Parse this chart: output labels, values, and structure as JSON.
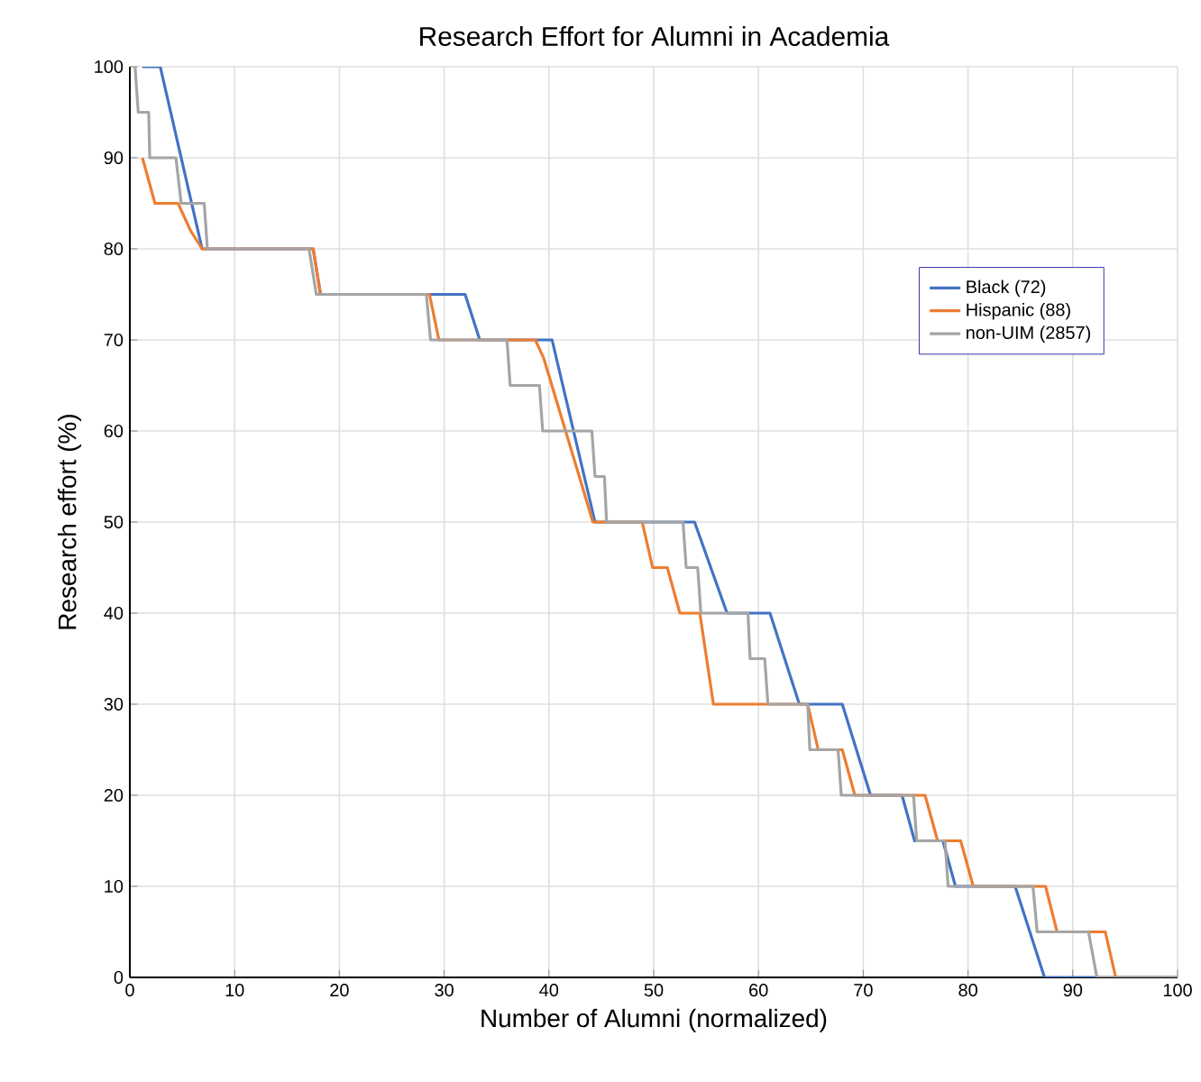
{
  "chart_data": {
    "type": "line",
    "title": "Research Effort for Alumni in Academia",
    "xlabel": "Number of Alumni (normalized)",
    "ylabel": "Research effort (%)",
    "xlim": [
      0,
      100
    ],
    "ylim": [
      0,
      100
    ],
    "xticks": [
      0,
      10,
      20,
      30,
      40,
      50,
      60,
      70,
      80,
      90,
      100
    ],
    "yticks": [
      0,
      10,
      20,
      30,
      40,
      50,
      60,
      70,
      80,
      90,
      100
    ],
    "grid": true,
    "legend": "top right",
    "marker": "none",
    "line_style": "solid",
    "series": [
      {
        "name": "Black (72)",
        "color": "#4472c4",
        "x": [
          1.2,
          2.9,
          6.9,
          17.5,
          18.2,
          32,
          33.4,
          40.3,
          44.4,
          53.9,
          57,
          61.1,
          63.9,
          68,
          70.7,
          73.7,
          74.9,
          77.6,
          78.8,
          84.5,
          87.3,
          100
        ],
        "values": [
          100,
          100,
          80,
          80,
          75,
          75,
          70,
          70,
          50,
          50,
          40,
          40,
          30,
          30,
          20,
          20,
          15,
          15,
          10,
          10,
          0,
          0
        ]
      },
      {
        "name": "Hispanic (88)",
        "color": "#ed7d31",
        "x": [
          1.2,
          2.4,
          4.6,
          5.8,
          6.9,
          17.5,
          18.2,
          28.6,
          29.5,
          38.7,
          39.5,
          44.2,
          48.9,
          49.9,
          51.3,
          52.5,
          54.4,
          55.7,
          64.7,
          65.7,
          68,
          69.2,
          75.9,
          77.1,
          79.3,
          80.5,
          87.4,
          88.5,
          93.1,
          94.1,
          100
        ],
        "values": [
          90,
          85,
          85,
          82,
          80,
          80,
          75,
          75,
          70,
          70,
          68,
          50,
          50,
          45,
          45,
          40,
          40,
          30,
          30,
          25,
          25,
          20,
          20,
          15,
          15,
          10,
          10,
          5,
          5,
          0,
          0
        ]
      },
      {
        "name": "non-UIM (2857)",
        "color": "#a5a5a5",
        "x": [
          0.5,
          0.8,
          1.8,
          1.9,
          4.4,
          4.9,
          7.1,
          7.4,
          17.1,
          17.8,
          28.3,
          28.7,
          36,
          36.3,
          39.1,
          39.4,
          44.1,
          44.4,
          45.3,
          45.5,
          52.8,
          53.1,
          54.2,
          54.5,
          59,
          59.2,
          60.6,
          60.9,
          64.7,
          64.9,
          67.6,
          67.9,
          74.8,
          75.1,
          77.8,
          78.1,
          86.2,
          86.6,
          91.5,
          92.3,
          100
        ],
        "values": [
          100,
          95,
          95,
          90,
          90,
          85,
          85,
          80,
          80,
          75,
          75,
          70,
          70,
          65,
          65,
          60,
          60,
          55,
          55,
          50,
          50,
          45,
          45,
          40,
          40,
          35,
          35,
          30,
          30,
          25,
          25,
          20,
          20,
          15,
          15,
          10,
          10,
          5,
          5,
          0,
          0
        ]
      }
    ]
  }
}
